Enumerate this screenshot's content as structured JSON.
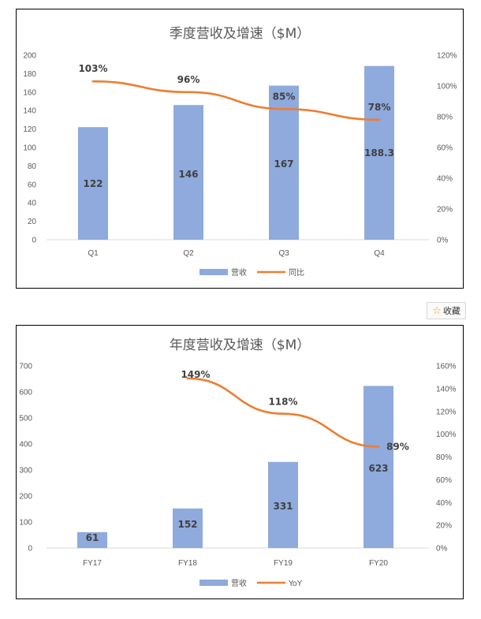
{
  "favorite": {
    "icon": "star-icon",
    "label": "收藏"
  },
  "colors": {
    "bar": "#8faadc",
    "line": "#ed7d31"
  },
  "chart_data": [
    {
      "type": "bar",
      "title": "季度营收及增速（$M）",
      "categories": [
        "Q1",
        "Q2",
        "Q3",
        "Q4"
      ],
      "series": [
        {
          "name": "营收",
          "type": "bar",
          "axis": "left",
          "values": [
            122,
            146,
            167,
            188.3
          ],
          "labels": [
            "122",
            "146",
            "167",
            "188.3"
          ]
        },
        {
          "name": "同比",
          "type": "line",
          "axis": "right",
          "values": [
            103,
            96,
            85,
            78
          ],
          "labels": [
            "103%",
            "96%",
            "85%",
            "78%"
          ]
        }
      ],
      "ylim": [
        0,
        200
      ],
      "yticks": [
        "0",
        "20",
        "40",
        "60",
        "80",
        "100",
        "120",
        "140",
        "160",
        "180",
        "200"
      ],
      "y2lim": [
        0,
        120
      ],
      "y2ticks": [
        "0%",
        "20%",
        "40%",
        "60%",
        "80%",
        "100%",
        "120%"
      ],
      "legend": "bottom",
      "grid": false
    },
    {
      "type": "bar",
      "title": "年度营收及增速（$M）",
      "categories": [
        "FY17",
        "FY18",
        "FY19",
        "FY20"
      ],
      "series": [
        {
          "name": "营收",
          "type": "bar",
          "axis": "left",
          "values": [
            61,
            152,
            331,
            623
          ],
          "labels": [
            "61",
            "152",
            "331",
            "623"
          ]
        },
        {
          "name": "YoY",
          "type": "line",
          "axis": "right",
          "values": [
            null,
            149,
            118,
            89
          ],
          "labels": [
            "",
            "149%",
            "118%",
            "89%"
          ]
        }
      ],
      "ylim": [
        0,
        700
      ],
      "yticks": [
        "0",
        "100",
        "200",
        "300",
        "400",
        "500",
        "600",
        "700"
      ],
      "y2lim": [
        0,
        160
      ],
      "y2ticks": [
        "0%",
        "20%",
        "40%",
        "60%",
        "80%",
        "100%",
        "120%",
        "140%",
        "160%"
      ],
      "legend": "bottom",
      "grid": false
    }
  ]
}
